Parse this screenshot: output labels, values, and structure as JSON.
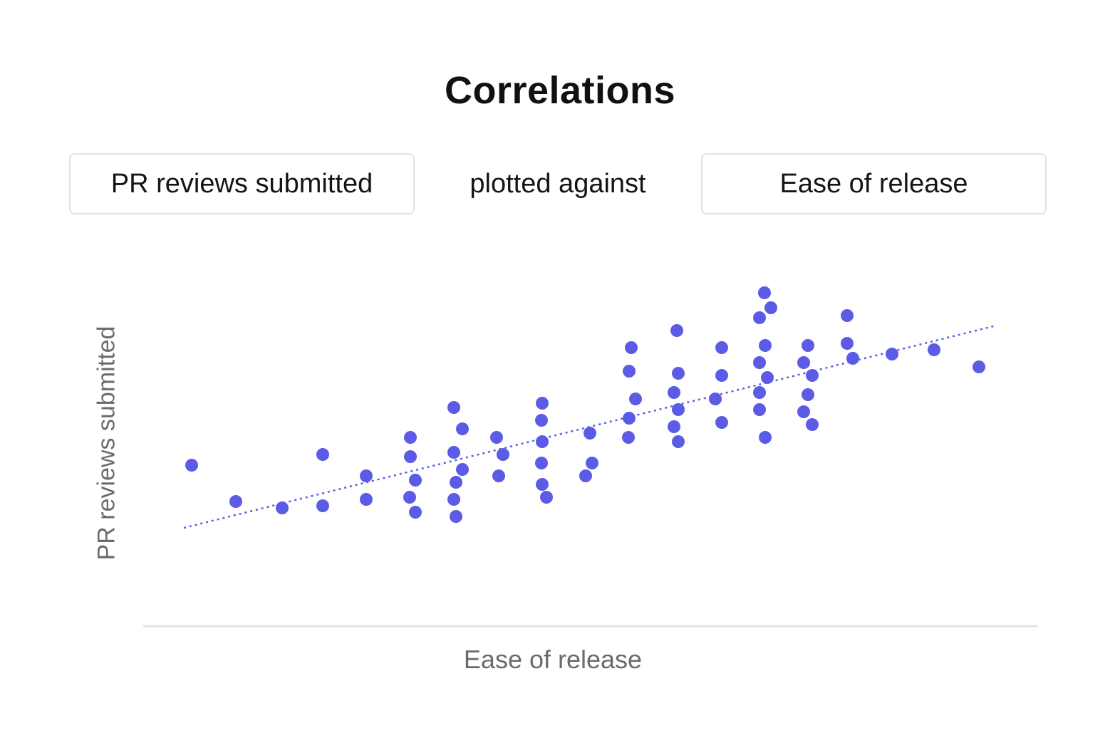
{
  "header": {
    "title": "Correlations"
  },
  "controls": {
    "y_metric": "PR reviews submitted",
    "connector": "plotted against",
    "x_metric": "Ease of release"
  },
  "colors": {
    "accent": "#5b5be6",
    "trend": "#5b5be6",
    "axis": "#e3e3e3"
  },
  "chart_data": {
    "type": "scatter",
    "xlabel": "Ease of release",
    "ylabel": "PR reviews submitted",
    "grid": false,
    "points": [
      [
        269,
        653
      ],
      [
        331,
        704
      ],
      [
        396,
        713
      ],
      [
        453,
        638
      ],
      [
        453,
        710
      ],
      [
        514,
        668
      ],
      [
        514,
        701
      ],
      [
        576,
        614
      ],
      [
        576,
        641
      ],
      [
        583,
        674
      ],
      [
        575,
        698
      ],
      [
        583,
        719
      ],
      [
        637,
        572
      ],
      [
        649,
        602
      ],
      [
        637,
        635
      ],
      [
        649,
        659
      ],
      [
        640,
        677
      ],
      [
        637,
        701
      ],
      [
        640,
        725
      ],
      [
        697,
        614
      ],
      [
        706,
        638
      ],
      [
        700,
        668
      ],
      [
        761,
        566
      ],
      [
        760,
        590
      ],
      [
        761,
        620
      ],
      [
        760,
        650
      ],
      [
        761,
        680
      ],
      [
        767,
        698
      ],
      [
        828,
        608
      ],
      [
        831,
        650
      ],
      [
        822,
        668
      ],
      [
        886,
        488
      ],
      [
        883,
        521
      ],
      [
        892,
        560
      ],
      [
        883,
        587
      ],
      [
        882,
        614
      ],
      [
        950,
        464
      ],
      [
        952,
        524
      ],
      [
        946,
        551
      ],
      [
        952,
        575
      ],
      [
        946,
        599
      ],
      [
        952,
        620
      ],
      [
        1013,
        488
      ],
      [
        1013,
        527
      ],
      [
        1004,
        560
      ],
      [
        1013,
        593
      ],
      [
        1073,
        411
      ],
      [
        1082,
        432
      ],
      [
        1066,
        446
      ],
      [
        1074,
        485
      ],
      [
        1066,
        509
      ],
      [
        1077,
        530
      ],
      [
        1066,
        551
      ],
      [
        1066,
        575
      ],
      [
        1074,
        614
      ],
      [
        1134,
        485
      ],
      [
        1128,
        509
      ],
      [
        1140,
        527
      ],
      [
        1134,
        554
      ],
      [
        1128,
        578
      ],
      [
        1140,
        596
      ],
      [
        1189,
        443
      ],
      [
        1189,
        482
      ],
      [
        1197,
        503
      ],
      [
        1252,
        497
      ],
      [
        1311,
        491
      ],
      [
        1374,
        515
      ]
    ],
    "trendline": {
      "x": [
        258,
        1398
      ],
      "y": [
        741,
        457
      ],
      "style": "dotted"
    }
  }
}
